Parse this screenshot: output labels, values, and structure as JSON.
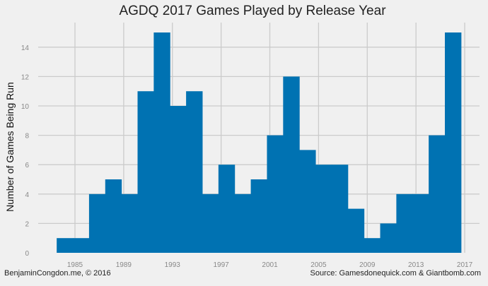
{
  "chart_data": {
    "type": "bar",
    "subtype": "histogram",
    "title": "AGDQ 2017 Games Played by Release Year",
    "xlabel": "",
    "ylabel": "Number of Games Being Run",
    "x_ticks": [
      1985,
      1989,
      1993,
      1997,
      2001,
      2005,
      2009,
      2013,
      2017
    ],
    "y_ticks": [
      0,
      2,
      4,
      6,
      8,
      10,
      12,
      14
    ],
    "xlim": [
      1981.5,
      2018
    ],
    "ylim": [
      0,
      15.5
    ],
    "grid": true,
    "bin_range": [
      1983.5,
      2016.7
    ],
    "bin_count": 25,
    "values": [
      1,
      1,
      4,
      5,
      4,
      11,
      15,
      10,
      11,
      4,
      6,
      4,
      5,
      8,
      12,
      7,
      6,
      6,
      3,
      1,
      2,
      4,
      4,
      8,
      15
    ],
    "bar_color": "#0072b2"
  },
  "footer": {
    "credit": "BenjaminCongdon.me, © 2016",
    "source": "Source: Gamesdonequick.com & Giantbomb.com"
  },
  "colors": {
    "background": "#f0f0f0",
    "grid": "#cbcbcb",
    "bar": "#0072b2",
    "tick_text": "#888888"
  }
}
